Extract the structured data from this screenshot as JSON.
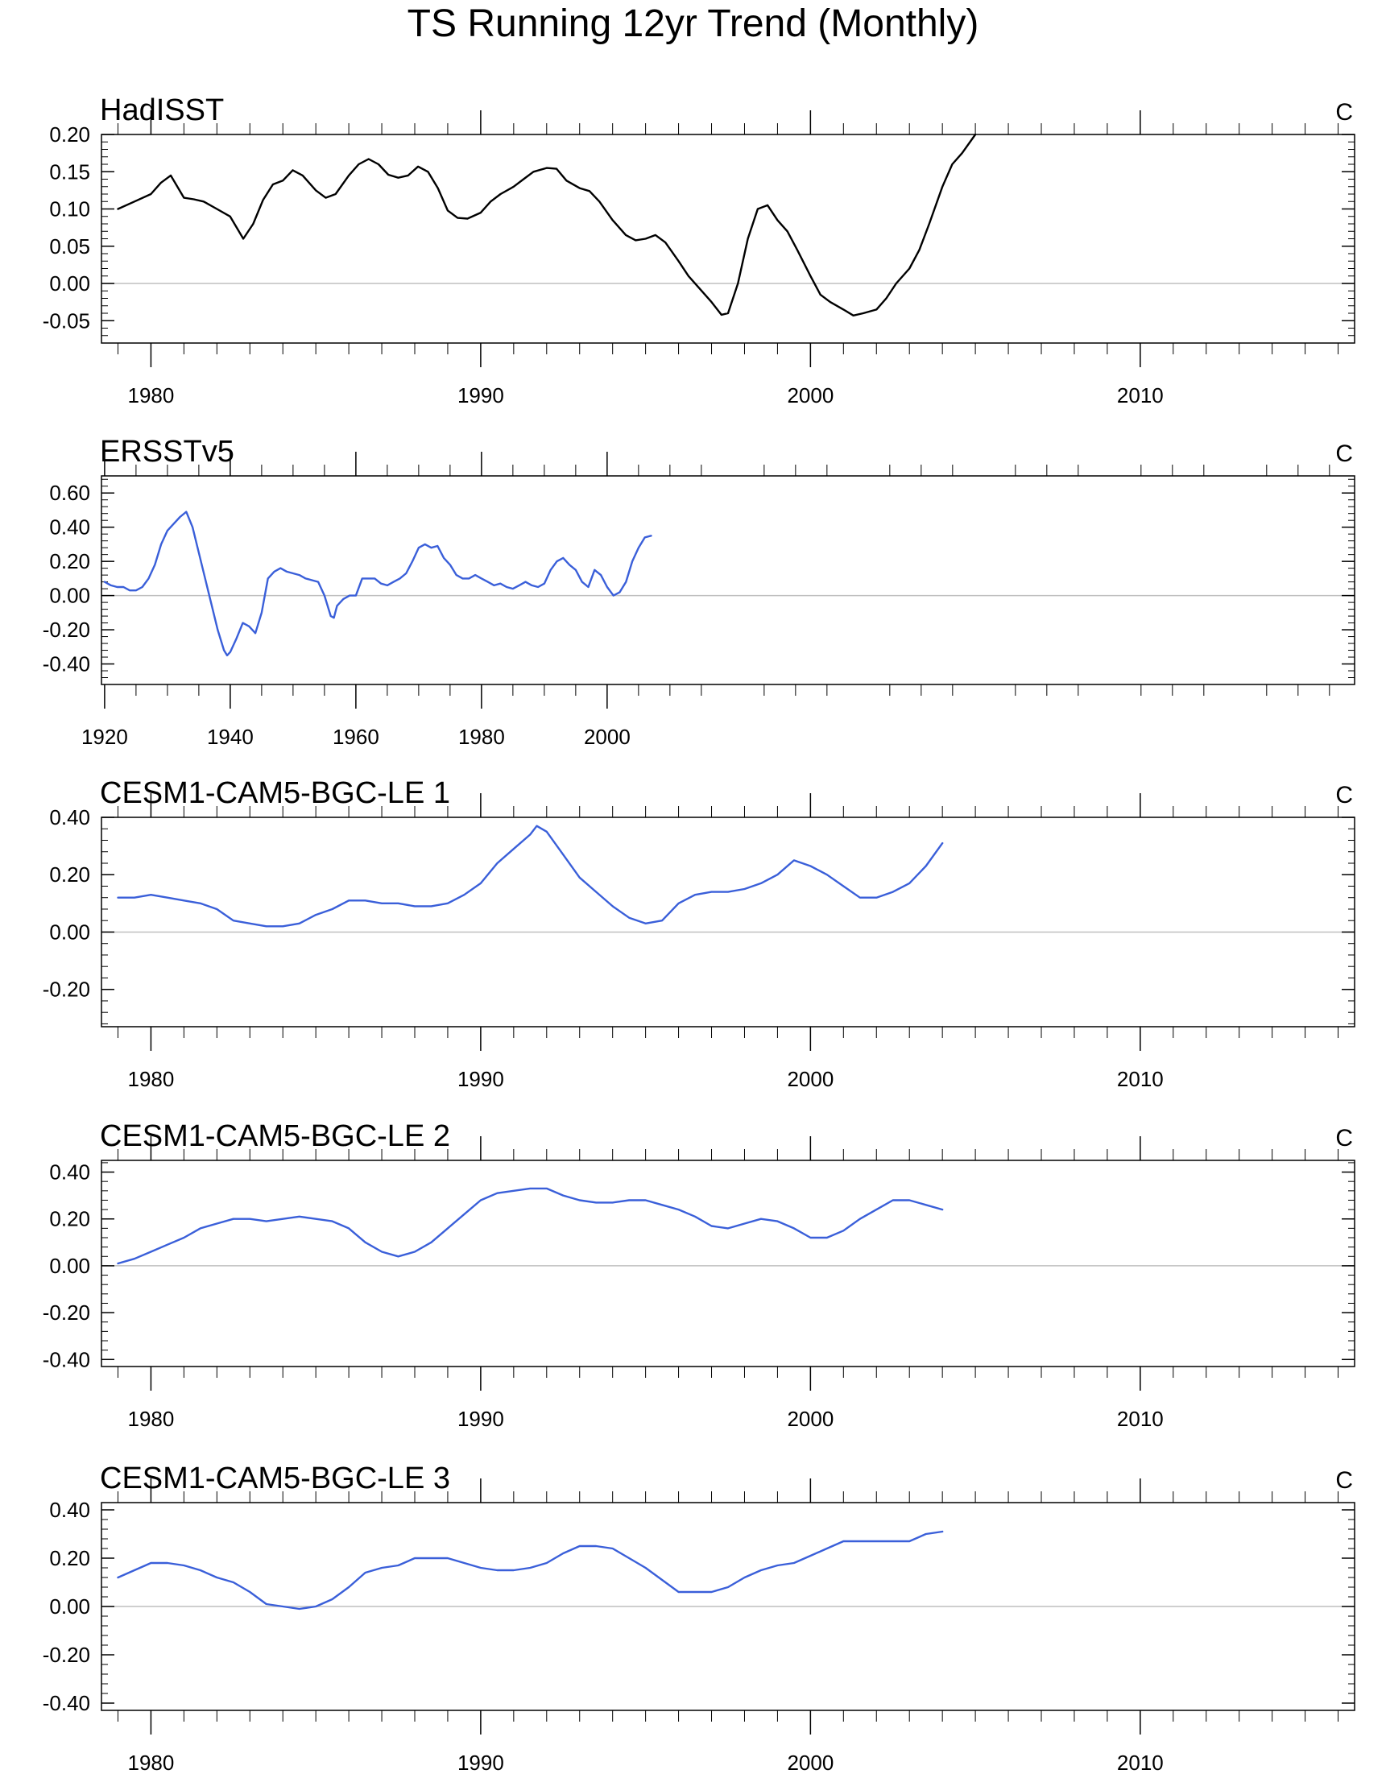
{
  "title": "TS Running 12yr Trend (Monthly)",
  "colors": {
    "hadisst": "#000000",
    "model": "#3a5fd9",
    "zero_line": "#bfbfbf",
    "frame": "#000000"
  },
  "chart_data": [
    {
      "type": "line",
      "title": "HadISST",
      "units": "C",
      "xlim": [
        1978.5,
        2016.5
      ],
      "ylim": [
        -0.08,
        0.2
      ],
      "yticks": [
        -0.05,
        0.0,
        0.05,
        0.1,
        0.15,
        0.2
      ],
      "yticklabels": [
        "-0.05",
        "0.00",
        "0.05",
        "0.10",
        "0.15",
        "0.20"
      ],
      "xticks": [
        1980,
        1990,
        2000,
        2010
      ],
      "xticklabels": [
        "1980",
        "1990",
        "2000",
        "2010"
      ],
      "series": [
        {
          "x": [
            1979.0,
            1979.5,
            1980.0,
            1980.3,
            1980.6,
            1981.0,
            1981.3,
            1981.6,
            1982.0,
            1982.4,
            1982.6,
            1982.8,
            1983.1,
            1983.4,
            1983.7,
            1984.0,
            1984.3,
            1984.6,
            1985.0,
            1985.3,
            1985.6,
            1986.0,
            1986.3,
            1986.6,
            1986.9,
            1987.2,
            1987.5,
            1987.8,
            1988.1,
            1988.4,
            1988.7,
            1989.0,
            1989.3,
            1989.6,
            1990.0,
            1990.3,
            1990.6,
            1991.0,
            1991.3,
            1991.6,
            1992.0,
            1992.3,
            1992.6,
            1993.0,
            1993.3,
            1993.6,
            1994.0,
            1994.4,
            1994.7,
            1995.0,
            1995.3,
            1995.6,
            1996.0,
            1996.3,
            1996.6,
            1997.0,
            1997.3,
            1997.5,
            1997.8,
            1998.1,
            1998.4,
            1998.7,
            1999.0,
            1999.3,
            1999.6,
            2000.0,
            2000.3,
            2000.6,
            2001.0,
            2001.3,
            2001.6,
            2002.0,
            2002.3,
            2002.6,
            2003.0,
            2003.3,
            2003.6,
            2004.0,
            2004.3,
            2004.6,
            2005.0
          ],
          "y": [
            0.1,
            0.11,
            0.12,
            0.135,
            0.145,
            0.115,
            0.113,
            0.11,
            0.1,
            0.09,
            0.075,
            0.06,
            0.08,
            0.112,
            0.133,
            0.138,
            0.152,
            0.145,
            0.125,
            0.115,
            0.12,
            0.145,
            0.16,
            0.167,
            0.16,
            0.146,
            0.142,
            0.145,
            0.157,
            0.15,
            0.128,
            0.098,
            0.088,
            0.087,
            0.095,
            0.11,
            0.12,
            0.13,
            0.14,
            0.15,
            0.155,
            0.154,
            0.138,
            0.128,
            0.124,
            0.11,
            0.085,
            0.065,
            0.058,
            0.06,
            0.065,
            0.055,
            0.03,
            0.01,
            -0.005,
            -0.025,
            -0.042,
            -0.04,
            0.0,
            0.06,
            0.1,
            0.105,
            0.085,
            0.07,
            0.045,
            0.01,
            -0.015,
            -0.025,
            -0.035,
            -0.043,
            -0.04,
            -0.035,
            -0.02,
            0.0,
            0.02,
            0.045,
            0.08,
            0.13,
            0.16,
            0.175,
            0.2
          ]
        }
      ]
    },
    {
      "type": "line",
      "title": "ERSSTv5",
      "units": "C",
      "xlim": [
        1919.5,
        2119.0
      ],
      "ylim": [
        -0.52,
        0.7
      ],
      "yticks": [
        -0.4,
        -0.2,
        0.0,
        0.2,
        0.4,
        0.6
      ],
      "yticklabels": [
        "-0.40",
        "-0.20",
        "0.00",
        "0.20",
        "0.40",
        "0.60"
      ],
      "xticks": [
        1920,
        1940,
        1960,
        1980,
        2000
      ],
      "xticklabels": [
        "1920",
        "1940",
        "1960",
        "1980",
        "2000"
      ],
      "series": [
        {
          "x": [
            1920.0,
            1921.0,
            1922.0,
            1923.0,
            1924.0,
            1925.0,
            1926.0,
            1927.0,
            1928.0,
            1929.0,
            1930.0,
            1931.0,
            1932.0,
            1933.0,
            1934.0,
            1935.0,
            1936.0,
            1937.0,
            1938.0,
            1939.0,
            1939.5,
            1940.0,
            1941.0,
            1942.0,
            1943.0,
            1944.0,
            1945.0,
            1946.0,
            1947.0,
            1948.0,
            1949.0,
            1950.0,
            1951.0,
            1952.0,
            1953.0,
            1954.0,
            1955.0,
            1956.0,
            1956.5,
            1957.0,
            1958.0,
            1959.0,
            1960.0,
            1961.0,
            1962.0,
            1963.0,
            1964.0,
            1965.0,
            1966.0,
            1967.0,
            1968.0,
            1969.0,
            1970.0,
            1971.0,
            1972.0,
            1973.0,
            1974.0,
            1975.0,
            1976.0,
            1977.0,
            1978.0,
            1979.0,
            1980.0,
            1981.0,
            1982.0,
            1983.0,
            1984.0,
            1985.0,
            1986.0,
            1987.0,
            1988.0,
            1989.0,
            1990.0,
            1991.0,
            1992.0,
            1993.0,
            1994.0,
            1995.0,
            1996.0,
            1997.0,
            1998.0,
            1999.0,
            2000.0,
            2001.0,
            2002.0,
            2003.0,
            2004.0,
            2005.0,
            2006.0,
            2007.0
          ],
          "y": [
            0.08,
            0.06,
            0.05,
            0.05,
            0.03,
            0.03,
            0.05,
            0.1,
            0.18,
            0.3,
            0.38,
            0.42,
            0.46,
            0.49,
            0.4,
            0.25,
            0.1,
            -0.05,
            -0.2,
            -0.32,
            -0.35,
            -0.33,
            -0.25,
            -0.16,
            -0.18,
            -0.22,
            -0.1,
            0.1,
            0.14,
            0.16,
            0.14,
            0.13,
            0.12,
            0.1,
            0.09,
            0.08,
            0.0,
            -0.12,
            -0.13,
            -0.06,
            -0.02,
            0.0,
            0.0,
            0.1,
            0.1,
            0.1,
            0.07,
            0.06,
            0.08,
            0.1,
            0.13,
            0.2,
            0.28,
            0.3,
            0.28,
            0.29,
            0.22,
            0.18,
            0.12,
            0.1,
            0.1,
            0.12,
            0.1,
            0.08,
            0.06,
            0.07,
            0.05,
            0.04,
            0.06,
            0.08,
            0.06,
            0.05,
            0.07,
            0.15,
            0.2,
            0.22,
            0.18,
            0.15,
            0.08,
            0.05,
            0.15,
            0.12,
            0.05,
            0.0,
            0.02,
            0.08,
            0.2,
            0.28,
            0.34,
            0.35
          ]
        }
      ]
    },
    {
      "type": "line",
      "title": "CESM1-CAM5-BGC-LE 1",
      "units": "C",
      "xlim": [
        1978.5,
        2016.5
      ],
      "ylim": [
        -0.33,
        0.4
      ],
      "yticks": [
        -0.2,
        0.0,
        0.2,
        0.4
      ],
      "yticklabels": [
        "-0.20",
        "0.00",
        "0.20",
        "0.40"
      ],
      "xticks": [
        1980,
        1990,
        2000,
        2010
      ],
      "xticklabels": [
        "1980",
        "1990",
        "2000",
        "2010"
      ],
      "series": [
        {
          "x": [
            1979.0,
            1979.5,
            1980.0,
            1980.5,
            1981.0,
            1981.5,
            1982.0,
            1982.5,
            1983.0,
            1983.5,
            1984.0,
            1984.5,
            1985.0,
            1985.5,
            1986.0,
            1986.5,
            1987.0,
            1987.5,
            1988.0,
            1988.5,
            1989.0,
            1989.5,
            1990.0,
            1990.5,
            1991.0,
            1991.5,
            1991.7,
            1992.0,
            1992.5,
            1993.0,
            1993.5,
            1994.0,
            1994.5,
            1995.0,
            1995.5,
            1996.0,
            1996.5,
            1997.0,
            1997.5,
            1998.0,
            1998.5,
            1999.0,
            1999.5,
            2000.0,
            2000.5,
            2001.0,
            2001.5,
            2002.0,
            2002.5,
            2003.0,
            2003.5,
            2004.0
          ],
          "y": [
            0.12,
            0.12,
            0.13,
            0.12,
            0.11,
            0.1,
            0.08,
            0.04,
            0.03,
            0.02,
            0.02,
            0.03,
            0.06,
            0.08,
            0.11,
            0.11,
            0.1,
            0.1,
            0.09,
            0.09,
            0.1,
            0.13,
            0.17,
            0.24,
            0.29,
            0.34,
            0.37,
            0.35,
            0.27,
            0.19,
            0.14,
            0.09,
            0.05,
            0.03,
            0.04,
            0.1,
            0.13,
            0.14,
            0.14,
            0.15,
            0.17,
            0.2,
            0.25,
            0.23,
            0.2,
            0.16,
            0.12,
            0.12,
            0.14,
            0.17,
            0.23,
            0.31
          ]
        }
      ]
    },
    {
      "type": "line",
      "title": "CESM1-CAM5-BGC-LE 2",
      "units": "C",
      "xlim": [
        1978.5,
        2016.5
      ],
      "ylim": [
        -0.43,
        0.45
      ],
      "yticks": [
        -0.4,
        -0.2,
        0.0,
        0.2,
        0.4
      ],
      "yticklabels": [
        "-0.40",
        "-0.20",
        "0.00",
        "0.20",
        "0.40"
      ],
      "xticks": [
        1980,
        1990,
        2000,
        2010
      ],
      "xticklabels": [
        "1980",
        "1990",
        "2000",
        "2010"
      ],
      "series": [
        {
          "x": [
            1979.0,
            1979.5,
            1980.0,
            1980.5,
            1981.0,
            1981.5,
            1982.0,
            1982.5,
            1983.0,
            1983.5,
            1984.0,
            1984.5,
            1985.0,
            1985.5,
            1986.0,
            1986.5,
            1987.0,
            1987.5,
            1988.0,
            1988.5,
            1989.0,
            1989.5,
            1990.0,
            1990.5,
            1991.0,
            1991.5,
            1992.0,
            1992.5,
            1993.0,
            1993.5,
            1994.0,
            1994.5,
            1995.0,
            1995.5,
            1996.0,
            1996.5,
            1997.0,
            1997.5,
            1998.0,
            1998.5,
            1999.0,
            1999.5,
            2000.0,
            2000.5,
            2001.0,
            2001.5,
            2002.0,
            2002.5,
            2003.0,
            2003.5,
            2004.0
          ],
          "y": [
            0.01,
            0.03,
            0.06,
            0.09,
            0.12,
            0.16,
            0.18,
            0.2,
            0.2,
            0.19,
            0.2,
            0.21,
            0.2,
            0.19,
            0.16,
            0.1,
            0.06,
            0.04,
            0.06,
            0.1,
            0.16,
            0.22,
            0.28,
            0.31,
            0.32,
            0.33,
            0.33,
            0.3,
            0.28,
            0.27,
            0.27,
            0.28,
            0.28,
            0.26,
            0.24,
            0.21,
            0.17,
            0.16,
            0.18,
            0.2,
            0.19,
            0.16,
            0.12,
            0.12,
            0.15,
            0.2,
            0.24,
            0.28,
            0.28,
            0.26,
            0.24
          ]
        }
      ]
    },
    {
      "type": "line",
      "title": "CESM1-CAM5-BGC-LE 3",
      "units": "C",
      "xlim": [
        1978.5,
        2016.5
      ],
      "ylim": [
        -0.43,
        0.43
      ],
      "yticks": [
        -0.4,
        -0.2,
        0.0,
        0.2,
        0.4
      ],
      "yticklabels": [
        "-0.40",
        "-0.20",
        "0.00",
        "0.20",
        "0.40"
      ],
      "xticks": [
        1980,
        1990,
        2000,
        2010
      ],
      "xticklabels": [
        "1980",
        "1990",
        "2000",
        "2010"
      ],
      "series": [
        {
          "x": [
            1979.0,
            1979.5,
            1980.0,
            1980.5,
            1981.0,
            1981.5,
            1982.0,
            1982.5,
            1983.0,
            1983.5,
            1984.0,
            1984.5,
            1985.0,
            1985.5,
            1986.0,
            1986.5,
            1987.0,
            1987.5,
            1988.0,
            1988.5,
            1989.0,
            1989.5,
            1990.0,
            1990.5,
            1991.0,
            1991.5,
            1992.0,
            1992.5,
            1993.0,
            1993.5,
            1994.0,
            1994.5,
            1995.0,
            1995.5,
            1996.0,
            1996.5,
            1997.0,
            1997.5,
            1998.0,
            1998.5,
            1999.0,
            1999.5,
            2000.0,
            2000.5,
            2001.0,
            2001.5,
            2002.0,
            2002.5,
            2003.0,
            2003.5,
            2004.0
          ],
          "y": [
            0.12,
            0.15,
            0.18,
            0.18,
            0.17,
            0.15,
            0.12,
            0.1,
            0.06,
            0.01,
            0.0,
            -0.01,
            0.0,
            0.03,
            0.08,
            0.14,
            0.16,
            0.17,
            0.2,
            0.2,
            0.2,
            0.18,
            0.16,
            0.15,
            0.15,
            0.16,
            0.18,
            0.22,
            0.25,
            0.25,
            0.24,
            0.2,
            0.16,
            0.11,
            0.06,
            0.06,
            0.06,
            0.08,
            0.12,
            0.15,
            0.17,
            0.18,
            0.21,
            0.24,
            0.27,
            0.27,
            0.27,
            0.27,
            0.27,
            0.3,
            0.31
          ]
        }
      ]
    }
  ]
}
